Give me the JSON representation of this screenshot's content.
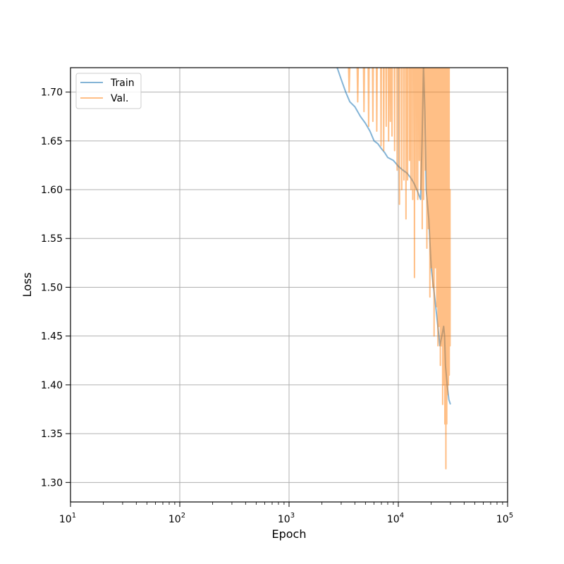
{
  "chart_data": {
    "type": "line",
    "title": "",
    "xlabel": "Epoch",
    "ylabel": "Loss",
    "xscale": "log",
    "xlim": [
      10,
      100000
    ],
    "ylim": [
      1.28,
      1.725
    ],
    "grid": true,
    "legend_position": "top-left",
    "x_ticks": [
      {
        "value": 10,
        "base": "10",
        "exp": "1"
      },
      {
        "value": 100,
        "base": "10",
        "exp": "2"
      },
      {
        "value": 1000,
        "base": "10",
        "exp": "3"
      },
      {
        "value": 10000,
        "base": "10",
        "exp": "4"
      },
      {
        "value": 100000,
        "base": "10",
        "exp": "5"
      }
    ],
    "y_ticks": [
      {
        "value": 1.3,
        "label": "1.30"
      },
      {
        "value": 1.35,
        "label": "1.35"
      },
      {
        "value": 1.4,
        "label": "1.40"
      },
      {
        "value": 1.45,
        "label": "1.45"
      },
      {
        "value": 1.5,
        "label": "1.50"
      },
      {
        "value": 1.55,
        "label": "1.55"
      },
      {
        "value": 1.6,
        "label": "1.60"
      },
      {
        "value": 1.65,
        "label": "1.65"
      },
      {
        "value": 1.7,
        "label": "1.70"
      }
    ],
    "series": [
      {
        "name": "Train",
        "color": "#1f77b4",
        "opacity": 0.55,
        "x": [
          2700,
          3000,
          3300,
          3600,
          4000,
          4500,
          5000,
          5500,
          6000,
          6500,
          7000,
          7500,
          8000,
          9000,
          10000,
          11000,
          12000,
          13000,
          14000,
          15000,
          16000,
          16500,
          17000,
          17500,
          18000,
          19000,
          20000,
          21000,
          22000,
          23000,
          24000,
          25000,
          26000,
          26500,
          27000,
          28000,
          29000,
          30000
        ],
        "y": [
          1.728,
          1.713,
          1.7,
          1.69,
          1.685,
          1.675,
          1.668,
          1.66,
          1.65,
          1.647,
          1.642,
          1.638,
          1.633,
          1.63,
          1.624,
          1.62,
          1.617,
          1.612,
          1.606,
          1.598,
          1.59,
          1.65,
          1.728,
          1.68,
          1.6,
          1.57,
          1.52,
          1.5,
          1.48,
          1.46,
          1.44,
          1.45,
          1.46,
          1.45,
          1.42,
          1.4,
          1.385,
          1.38
        ]
      },
      {
        "name": "Val.",
        "color": "#ff7f0e",
        "opacity": 0.5,
        "x": [
          3500,
          3550,
          3600,
          4200,
          4250,
          4300,
          4800,
          4850,
          4900,
          5300,
          5350,
          5400,
          5800,
          5850,
          5900,
          6300,
          6350,
          6400,
          6900,
          6950,
          7000,
          7300,
          7350,
          7400,
          7700,
          7750,
          7800,
          8100,
          8150,
          8200,
          8400,
          8450,
          8500,
          8700,
          8750,
          8800,
          9200,
          9250,
          9300,
          9700,
          9750,
          9800,
          10200,
          10250,
          10300,
          10700,
          10750,
          10800,
          11200,
          11250,
          11300,
          11700,
          11750,
          11800,
          12100,
          12150,
          12200,
          12600,
          12650,
          12700,
          13000,
          13050,
          13100,
          13500,
          13550,
          13600,
          14000,
          14050,
          14100,
          14500,
          14550,
          14600,
          15000,
          15050,
          15100,
          15500,
          15550,
          15600,
          16000,
          16050,
          16100,
          16500,
          16550,
          16600,
          17000,
          17050,
          17100,
          17600,
          17650,
          17700,
          18200,
          18250,
          18300,
          18800,
          18850,
          18900,
          19400,
          19450,
          19500,
          20000,
          20050,
          20100,
          20600,
          20650,
          20700,
          21200,
          21250,
          21300,
          21800,
          21850,
          21900,
          22400,
          22450,
          22500,
          23000,
          23050,
          23100,
          23600,
          23650,
          23700,
          24200,
          24250,
          24300,
          24800,
          24850,
          24900,
          25400,
          25450,
          25500,
          26000,
          26050,
          26100,
          26600,
          26650,
          26700,
          27200,
          27250,
          27300,
          27700,
          27750,
          27800,
          28200,
          28250,
          28300,
          28700,
          28750,
          28800,
          29200,
          29250,
          29300,
          29700,
          29750,
          29800
        ],
        "y": [
          1.728,
          1.7,
          1.728,
          1.728,
          1.69,
          1.728,
          1.728,
          1.68,
          1.728,
          1.728,
          1.665,
          1.728,
          1.728,
          1.67,
          1.728,
          1.728,
          1.66,
          1.728,
          1.728,
          1.645,
          1.728,
          1.728,
          1.64,
          1.728,
          1.728,
          1.665,
          1.728,
          1.728,
          1.65,
          1.728,
          1.728,
          1.67,
          1.728,
          1.728,
          1.655,
          1.728,
          1.728,
          1.64,
          1.728,
          1.728,
          1.62,
          1.728,
          1.728,
          1.585,
          1.728,
          1.728,
          1.6,
          1.728,
          1.728,
          1.61,
          1.728,
          1.728,
          1.57,
          1.728,
          1.728,
          1.61,
          1.728,
          1.728,
          1.63,
          1.728,
          1.728,
          1.6,
          1.728,
          1.728,
          1.59,
          1.728,
          1.728,
          1.51,
          1.728,
          1.728,
          1.6,
          1.728,
          1.728,
          1.59,
          1.728,
          1.728,
          1.63,
          1.728,
          1.728,
          1.6,
          1.728,
          1.728,
          1.56,
          1.728,
          1.728,
          1.59,
          1.728,
          1.728,
          1.62,
          1.728,
          1.728,
          1.54,
          1.728,
          1.728,
          1.56,
          1.728,
          1.728,
          1.49,
          1.728,
          1.728,
          1.52,
          1.728,
          1.728,
          1.5,
          1.728,
          1.728,
          1.45,
          1.728,
          1.728,
          1.52,
          1.728,
          1.728,
          1.48,
          1.728,
          1.728,
          1.44,
          1.7,
          1.728,
          1.46,
          1.728,
          1.728,
          1.42,
          1.728,
          1.728,
          1.44,
          1.728,
          1.728,
          1.38,
          1.728,
          1.728,
          1.4,
          1.728,
          1.728,
          1.36,
          1.728,
          1.728,
          1.314,
          1.7,
          1.728,
          1.36,
          1.728,
          1.728,
          1.39,
          1.6,
          1.728,
          1.4,
          1.55,
          1.728,
          1.41,
          1.55,
          1.6,
          1.44,
          1.5
        ]
      }
    ]
  }
}
